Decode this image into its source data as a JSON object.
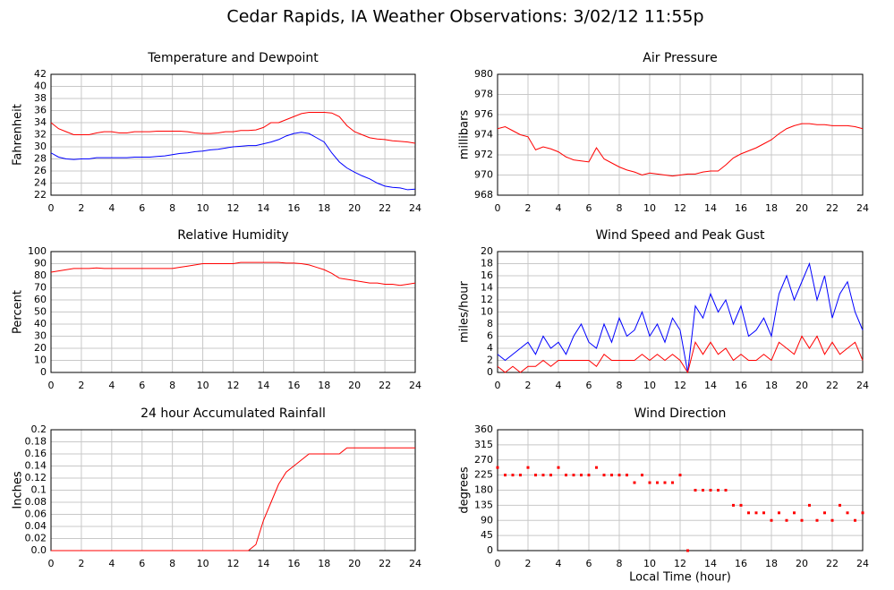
{
  "title": "Cedar Rapids, IA Weather Observations: 3/02/12 11:55p",
  "chart_data": [
    {
      "type": "line",
      "title": "Temperature and Dewpoint",
      "ylabel": "Fahrenheit",
      "x": [
        0,
        0.5,
        1,
        1.5,
        2,
        2.5,
        3,
        3.5,
        4,
        4.5,
        5,
        5.5,
        6,
        6.5,
        7,
        7.5,
        8,
        8.5,
        9,
        9.5,
        10,
        10.5,
        11,
        11.5,
        12,
        12.5,
        13,
        13.5,
        14,
        14.5,
        15,
        15.5,
        16,
        16.5,
        17,
        17.5,
        18,
        18.5,
        19,
        19.5,
        20,
        20.5,
        21,
        21.5,
        22,
        22.5,
        23,
        23.5,
        24
      ],
      "series": [
        {
          "color": "#ff0000",
          "values": [
            34,
            33,
            32.5,
            32,
            32,
            32,
            32.3,
            32.5,
            32.5,
            32.3,
            32.3,
            32.5,
            32.5,
            32.5,
            32.6,
            32.6,
            32.6,
            32.6,
            32.5,
            32.3,
            32.2,
            32.2,
            32.3,
            32.5,
            32.5,
            32.7,
            32.7,
            32.8,
            33.2,
            34,
            34,
            34.5,
            35,
            35.5,
            35.7,
            35.7,
            35.7,
            35.6,
            35,
            33.5,
            32.5,
            32,
            31.5,
            31.3,
            31.2,
            31,
            30.9,
            30.8,
            30.6
          ]
        },
        {
          "color": "#0000ff",
          "values": [
            29,
            28.3,
            28,
            27.9,
            28,
            28,
            28.2,
            28.2,
            28.2,
            28.2,
            28.2,
            28.3,
            28.3,
            28.3,
            28.4,
            28.5,
            28.7,
            28.9,
            29,
            29.2,
            29.3,
            29.5,
            29.6,
            29.8,
            30,
            30.1,
            30.2,
            30.2,
            30.5,
            30.8,
            31.2,
            31.8,
            32.2,
            32.4,
            32.2,
            31.5,
            30.8,
            29,
            27.5,
            26.5,
            25.8,
            25.2,
            24.7,
            24,
            23.5,
            23.3,
            23.2,
            22.9,
            23
          ]
        }
      ],
      "xlim": [
        0,
        24
      ],
      "xticks": [
        0,
        2,
        4,
        6,
        8,
        10,
        12,
        14,
        16,
        18,
        20,
        22,
        24
      ],
      "ylim": [
        22,
        42
      ],
      "yticks": [
        22,
        24,
        26,
        28,
        30,
        32,
        34,
        36,
        38,
        40,
        42
      ],
      "grid": true
    },
    {
      "type": "line",
      "title": "Air Pressure",
      "ylabel": "millibars",
      "x": [
        0,
        0.5,
        1,
        1.5,
        2,
        2.5,
        3,
        3.5,
        4,
        4.5,
        5,
        5.5,
        6,
        6.5,
        7,
        7.5,
        8,
        8.5,
        9,
        9.5,
        10,
        10.5,
        11,
        11.5,
        12,
        12.5,
        13,
        13.5,
        14,
        14.5,
        15,
        15.5,
        16,
        16.5,
        17,
        17.5,
        18,
        18.5,
        19,
        19.5,
        20,
        20.5,
        21,
        21.5,
        22,
        22.5,
        23,
        23.5,
        24
      ],
      "series": [
        {
          "color": "#ff0000",
          "values": [
            974.6,
            974.8,
            974.4,
            974,
            973.8,
            972.5,
            972.8,
            972.6,
            972.3,
            971.8,
            971.5,
            971.4,
            971.3,
            972.7,
            971.6,
            971.2,
            970.8,
            970.5,
            970.3,
            970,
            970.2,
            970.1,
            970,
            969.9,
            970,
            970.1,
            970.1,
            970.3,
            970.4,
            970.4,
            971,
            971.7,
            972.1,
            972.4,
            972.7,
            973.1,
            973.5,
            974.1,
            974.6,
            974.9,
            975.1,
            975.1,
            975,
            975,
            974.9,
            974.9,
            974.9,
            974.8,
            974.6
          ]
        }
      ],
      "xlim": [
        0,
        24
      ],
      "xticks": [
        0,
        2,
        4,
        6,
        8,
        10,
        12,
        14,
        16,
        18,
        20,
        22,
        24
      ],
      "ylim": [
        968,
        980
      ],
      "yticks": [
        968,
        970,
        972,
        974,
        976,
        978,
        980
      ],
      "grid": true
    },
    {
      "type": "line",
      "title": "Relative Humidity",
      "ylabel": "Percent",
      "x": [
        0,
        0.5,
        1,
        1.5,
        2,
        2.5,
        3,
        3.5,
        4,
        4.5,
        5,
        5.5,
        6,
        6.5,
        7,
        7.5,
        8,
        8.5,
        9,
        9.5,
        10,
        10.5,
        11,
        11.5,
        12,
        12.5,
        13,
        13.5,
        14,
        14.5,
        15,
        15.5,
        16,
        16.5,
        17,
        17.5,
        18,
        18.5,
        19,
        19.5,
        20,
        20.5,
        21,
        21.5,
        22,
        22.5,
        23,
        23.5,
        24
      ],
      "series": [
        {
          "color": "#ff0000",
          "values": [
            83,
            84,
            85,
            86,
            86,
            86,
            86.5,
            86,
            86,
            86,
            86,
            86,
            86,
            86,
            86,
            86,
            86,
            87,
            88,
            89,
            90,
            90,
            90,
            90,
            90,
            91,
            91,
            91,
            91,
            91,
            91,
            90.5,
            90.5,
            90,
            89,
            87,
            85,
            82,
            78,
            77,
            76,
            75,
            74,
            74,
            73,
            73,
            72,
            73,
            74
          ]
        }
      ],
      "xlim": [
        0,
        24
      ],
      "xticks": [
        0,
        2,
        4,
        6,
        8,
        10,
        12,
        14,
        16,
        18,
        20,
        22,
        24
      ],
      "ylim": [
        0,
        100
      ],
      "yticks": [
        0,
        10,
        20,
        30,
        40,
        50,
        60,
        70,
        80,
        90,
        100
      ],
      "grid": true
    },
    {
      "type": "line",
      "title": "Wind Speed and Peak Gust",
      "ylabel": "miles/hour",
      "x": [
        0,
        0.5,
        1,
        1.5,
        2,
        2.5,
        3,
        3.5,
        4,
        4.5,
        5,
        5.5,
        6,
        6.5,
        7,
        7.5,
        8,
        8.5,
        9,
        9.5,
        10,
        10.5,
        11,
        11.5,
        12,
        12.5,
        13,
        13.5,
        14,
        14.5,
        15,
        15.5,
        16,
        16.5,
        17,
        17.5,
        18,
        18.5,
        19,
        19.5,
        20,
        20.5,
        21,
        21.5,
        22,
        22.5,
        23,
        23.5,
        24
      ],
      "series": [
        {
          "color": "#0000ff",
          "values": [
            3,
            2,
            3,
            4,
            5,
            3,
            6,
            4,
            5,
            3,
            6,
            8,
            5,
            4,
            8,
            5,
            9,
            6,
            7,
            10,
            6,
            8,
            5,
            9,
            7,
            0,
            11,
            9,
            13,
            10,
            12,
            8,
            11,
            6,
            7,
            9,
            6,
            13,
            16,
            12,
            15,
            18,
            12,
            16,
            9,
            13,
            15,
            10,
            7
          ]
        },
        {
          "color": "#ff0000",
          "values": [
            1,
            0,
            1,
            0,
            1,
            1,
            2,
            1,
            2,
            2,
            2,
            2,
            2,
            1,
            3,
            2,
            2,
            2,
            2,
            3,
            2,
            3,
            2,
            3,
            2,
            0,
            5,
            3,
            5,
            3,
            4,
            2,
            3,
            2,
            2,
            3,
            2,
            5,
            4,
            3,
            6,
            4,
            6,
            3,
            5,
            3,
            4,
            5,
            2
          ]
        }
      ],
      "xlim": [
        0,
        24
      ],
      "xticks": [
        0,
        2,
        4,
        6,
        8,
        10,
        12,
        14,
        16,
        18,
        20,
        22,
        24
      ],
      "ylim": [
        0,
        20
      ],
      "yticks": [
        0,
        2,
        4,
        6,
        8,
        10,
        12,
        14,
        16,
        18,
        20
      ],
      "grid": true
    },
    {
      "type": "line",
      "title": "24 hour Accumulated Rainfall",
      "ylabel": "Inches",
      "x": [
        0,
        0.5,
        1,
        1.5,
        2,
        2.5,
        3,
        3.5,
        4,
        4.5,
        5,
        5.5,
        6,
        6.5,
        7,
        7.5,
        8,
        8.5,
        9,
        9.5,
        10,
        10.5,
        11,
        11.5,
        12,
        12.5,
        13,
        13.5,
        14,
        14.5,
        15,
        15.5,
        16,
        16.5,
        17,
        17.5,
        18,
        18.5,
        19,
        19.5,
        20,
        20.5,
        21,
        21.5,
        22,
        22.5,
        23,
        23.5,
        24
      ],
      "series": [
        {
          "color": "#ff0000",
          "values": [
            0,
            0,
            0,
            0,
            0,
            0,
            0,
            0,
            0,
            0,
            0,
            0,
            0,
            0,
            0,
            0,
            0,
            0,
            0,
            0,
            0,
            0,
            0,
            0,
            0,
            0,
            0,
            0.01,
            0.05,
            0.08,
            0.11,
            0.13,
            0.14,
            0.15,
            0.16,
            0.16,
            0.16,
            0.16,
            0.16,
            0.17,
            0.17,
            0.17,
            0.17,
            0.17,
            0.17,
            0.17,
            0.17,
            0.17,
            0.17
          ]
        }
      ],
      "xlim": [
        0,
        24
      ],
      "xticks": [
        0,
        2,
        4,
        6,
        8,
        10,
        12,
        14,
        16,
        18,
        20,
        22,
        24
      ],
      "ylim": [
        0,
        0.2
      ],
      "yticks": [
        {
          "value": 0,
          "label": "0.0"
        },
        0.02,
        0.04,
        0.06,
        0.08,
        0.1,
        0.12,
        0.14,
        0.16,
        0.18,
        0.2
      ],
      "grid": true
    },
    {
      "type": "scatter",
      "title": "Wind Direction",
      "ylabel": "degrees",
      "xlabel": "Local Time (hour)",
      "x": [
        0,
        0.5,
        1,
        1.5,
        2,
        2.5,
        3,
        3.5,
        4,
        4.5,
        5,
        5.5,
        6,
        6.5,
        7,
        7.5,
        8,
        8.5,
        9,
        9.5,
        10,
        10.5,
        11,
        11.5,
        12,
        12.5,
        13,
        13.5,
        14,
        14.5,
        15,
        15.5,
        16,
        16.5,
        17,
        17.5,
        18,
        18.5,
        19,
        19.5,
        20,
        20.5,
        21,
        21.5,
        22,
        22.5,
        23,
        23.5,
        24
      ],
      "series": [
        {
          "color": "#ff0000",
          "values": [
            247.5,
            225,
            225,
            225,
            247.5,
            225,
            225,
            225,
            247.5,
            225,
            225,
            225,
            225,
            247.5,
            225,
            225,
            225,
            225,
            202.5,
            225,
            202.5,
            202.5,
            202.5,
            202.5,
            225,
            0,
            180,
            180,
            180,
            180,
            180,
            135,
            135,
            112.5,
            112.5,
            112.5,
            90,
            112.5,
            90,
            112.5,
            90,
            135,
            90,
            112.5,
            90,
            135,
            112.5,
            90,
            112.5
          ]
        }
      ],
      "xlim": [
        0,
        24
      ],
      "xticks": [
        0,
        2,
        4,
        6,
        8,
        10,
        12,
        14,
        16,
        18,
        20,
        22,
        24
      ],
      "ylim": [
        0,
        360
      ],
      "yticks": [
        0,
        45,
        90,
        135,
        180,
        225,
        270,
        315,
        360
      ],
      "grid": true
    }
  ]
}
